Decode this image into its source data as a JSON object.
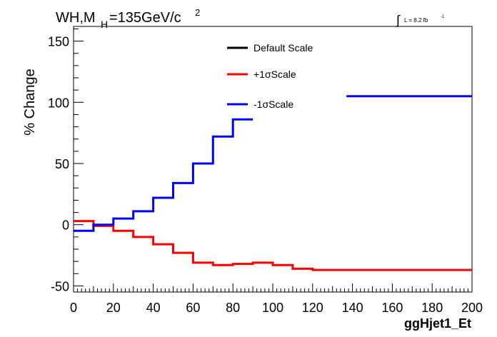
{
  "chart_data": {
    "type": "line",
    "title_main": "WH,M",
    "title_sub": "H",
    "title_rest": "=135GeV/c",
    "title_sup": "2",
    "lumi_main": "L = 8.2 fb",
    "lumi_sup": "-1",
    "lumi_integral": "∫",
    "xlabel": "ggHjet1_Et",
    "ylabel": "% Change",
    "xlim": [
      0,
      200
    ],
    "ylim": [
      -55,
      162
    ],
    "xticks": [
      0,
      20,
      40,
      60,
      80,
      100,
      120,
      140,
      160,
      180,
      200
    ],
    "xtick_labels": [
      "0",
      "20",
      "40",
      "60",
      "80",
      "100",
      "120",
      "140",
      "160",
      "180",
      "200"
    ],
    "yticks": [
      -50,
      0,
      50,
      100,
      150
    ],
    "ytick_labels": [
      "-50",
      "0",
      "50",
      "100",
      "150"
    ],
    "grid": false,
    "legend_position": "top-center",
    "series": [
      {
        "name": "Default Scale",
        "color": "#000000",
        "bins": []
      },
      {
        "name": "+1σScale",
        "color": "#ff0000",
        "bins": [
          {
            "x0": 0,
            "x1": 10,
            "y": 3
          },
          {
            "x0": 10,
            "x1": 20,
            "y": -1
          },
          {
            "x0": 20,
            "x1": 30,
            "y": -5
          },
          {
            "x0": 30,
            "x1": 40,
            "y": -10
          },
          {
            "x0": 40,
            "x1": 50,
            "y": -16
          },
          {
            "x0": 50,
            "x1": 60,
            "y": -23
          },
          {
            "x0": 60,
            "x1": 70,
            "y": -31
          },
          {
            "x0": 70,
            "x1": 80,
            "y": -33
          },
          {
            "x0": 80,
            "x1": 90,
            "y": -32
          },
          {
            "x0": 90,
            "x1": 100,
            "y": -31
          },
          {
            "x0": 100,
            "x1": 110,
            "y": -33
          },
          {
            "x0": 110,
            "x1": 120,
            "y": -36
          },
          {
            "x0": 120,
            "x1": 200,
            "y": -37
          }
        ]
      },
      {
        "name": "-1σScale",
        "color": "#0000ff",
        "bins": [
          {
            "x0": 0,
            "x1": 10,
            "y": -5
          },
          {
            "x0": 10,
            "x1": 20,
            "y": 0
          },
          {
            "x0": 20,
            "x1": 30,
            "y": 5
          },
          {
            "x0": 30,
            "x1": 40,
            "y": 11
          },
          {
            "x0": 40,
            "x1": 50,
            "y": 22
          },
          {
            "x0": 50,
            "x1": 60,
            "y": 34
          },
          {
            "x0": 60,
            "x1": 70,
            "y": 50
          },
          {
            "x0": 70,
            "x1": 80,
            "y": 72
          },
          {
            "x0": 80,
            "x1": 90,
            "y": 86
          },
          {
            "x0": 137,
            "x1": 200,
            "y": 105
          }
        ]
      }
    ]
  }
}
